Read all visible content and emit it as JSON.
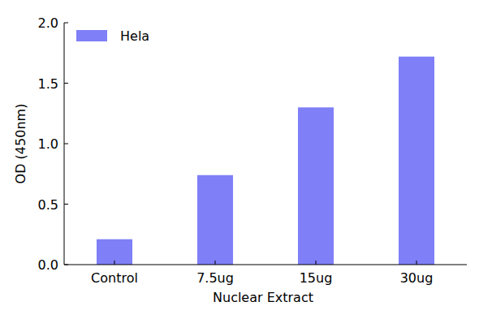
{
  "chart_data": {
    "type": "bar",
    "x_label": "Nuclear Extract",
    "y_label": "OD (450nm)",
    "categories": [
      "Control",
      "7.5ug",
      "15ug",
      "30ug"
    ],
    "series": [
      {
        "name": "Hela",
        "color": "#7f7ff7",
        "values": [
          0.21,
          0.74,
          1.3,
          1.72
        ]
      }
    ],
    "ylim": [
      0,
      2.0
    ],
    "yticks": [
      {
        "value": 0,
        "label": "0.0"
      },
      0.5,
      {
        "value": 1.0,
        "label": "1.0"
      },
      1.5,
      {
        "value": 2.0,
        "label": "2.0"
      }
    ],
    "grid": false,
    "legend": "upper left"
  }
}
